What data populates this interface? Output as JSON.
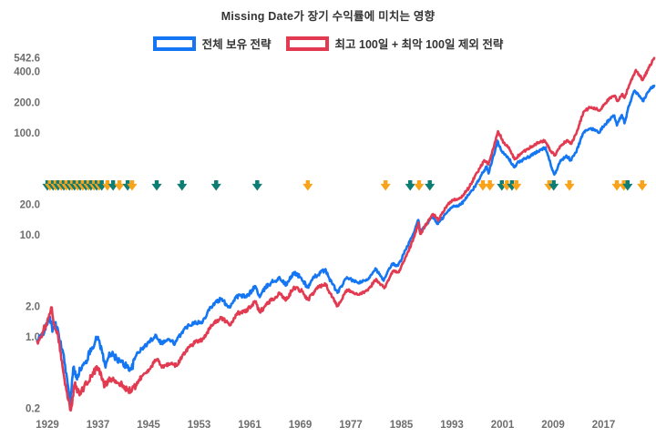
{
  "title": "Missing Date가 장기 수익률에 미치는 영향",
  "legend": {
    "items": [
      {
        "label": "전체 보유 전략",
        "color": "#1476f2"
      },
      {
        "label": "최고 100일 + 최악 100일 제외 전략",
        "color": "#e23a50"
      }
    ]
  },
  "chart_data": {
    "type": "line",
    "title": "Missing Date가 장기 수익률에 미치는 영향",
    "y_scale": "log",
    "grid": false,
    "background": "#ffffff",
    "tick_color": "#6e6e6e",
    "x_range": [
      1927.3,
      2025.3
    ],
    "y_range": [
      0.17,
      620
    ],
    "x_ticks": [
      1929,
      1937,
      1945,
      1953,
      1961,
      1969,
      1977,
      1985,
      1993,
      2001,
      2009,
      2017
    ],
    "y_ticks": [
      {
        "label": "542.6",
        "value": 542.6
      },
      {
        "label": "400.0",
        "value": 400
      },
      {
        "label": "200.0",
        "value": 200
      },
      {
        "label": "100.0",
        "value": 100
      },
      {
        "label": "20.0",
        "value": 20
      },
      {
        "label": "10.0",
        "value": 10
      },
      {
        "label": "2.0",
        "value": 2
      },
      {
        "label": "1.0",
        "value": 1
      },
      {
        "label": "0.2",
        "value": 0.2
      }
    ],
    "series": [
      {
        "name": "전체 보유 전략",
        "color": "#1476f2",
        "final_value": 290,
        "points": [
          [
            1927.4,
            0.9
          ],
          [
            1928.0,
            1.02
          ],
          [
            1928.6,
            1.18
          ],
          [
            1929.0,
            1.32
          ],
          [
            1929.4,
            1.58
          ],
          [
            1929.8,
            1.12
          ],
          [
            1930.2,
            1.38
          ],
          [
            1930.8,
            1.05
          ],
          [
            1931.5,
            0.7
          ],
          [
            1932.0,
            0.44
          ],
          [
            1932.6,
            0.22
          ],
          [
            1933.1,
            0.5
          ],
          [
            1933.6,
            0.4
          ],
          [
            1934.2,
            0.48
          ],
          [
            1935.0,
            0.55
          ],
          [
            1936.0,
            0.78
          ],
          [
            1937.0,
            1.0
          ],
          [
            1937.6,
            0.74
          ],
          [
            1938.2,
            0.5
          ],
          [
            1938.8,
            0.7
          ],
          [
            1939.6,
            0.64
          ],
          [
            1940.4,
            0.58
          ],
          [
            1941.5,
            0.52
          ],
          [
            1942.3,
            0.48
          ],
          [
            1943.2,
            0.7
          ],
          [
            1944.0,
            0.76
          ],
          [
            1945.0,
            0.88
          ],
          [
            1946.2,
            1.04
          ],
          [
            1947.0,
            0.87
          ],
          [
            1948.2,
            0.94
          ],
          [
            1949.2,
            0.86
          ],
          [
            1950.3,
            1.12
          ],
          [
            1951.2,
            1.28
          ],
          [
            1952.3,
            1.4
          ],
          [
            1953.5,
            1.37
          ],
          [
            1954.5,
            1.85
          ],
          [
            1955.5,
            2.15
          ],
          [
            1956.5,
            2.35
          ],
          [
            1957.8,
            1.95
          ],
          [
            1958.8,
            2.45
          ],
          [
            1959.5,
            2.55
          ],
          [
            1960.5,
            2.45
          ],
          [
            1961.9,
            3.15
          ],
          [
            1962.6,
            2.45
          ],
          [
            1963.5,
            3.05
          ],
          [
            1964.5,
            3.45
          ],
          [
            1965.8,
            3.75
          ],
          [
            1966.8,
            3.2
          ],
          [
            1968.0,
            4.3
          ],
          [
            1969.0,
            3.85
          ],
          [
            1970.2,
            3.05
          ],
          [
            1971.3,
            3.9
          ],
          [
            1972.9,
            4.55
          ],
          [
            1974.0,
            3.4
          ],
          [
            1974.9,
            2.7
          ],
          [
            1976.4,
            3.85
          ],
          [
            1977.5,
            3.5
          ],
          [
            1978.3,
            3.4
          ],
          [
            1979.6,
            3.6
          ],
          [
            1980.9,
            4.7
          ],
          [
            1982.2,
            3.55
          ],
          [
            1983.5,
            5.2
          ],
          [
            1984.5,
            5.0
          ],
          [
            1986.0,
            7.8
          ],
          [
            1987.0,
            10.5
          ],
          [
            1987.7,
            14.0
          ],
          [
            1988.0,
            10.5
          ],
          [
            1989.0,
            12.8
          ],
          [
            1989.9,
            15.2
          ],
          [
            1990.8,
            12.8
          ],
          [
            1992.0,
            16.0
          ],
          [
            1993.1,
            19.0
          ],
          [
            1994.4,
            19.8
          ],
          [
            1995.6,
            24.5
          ],
          [
            1996.6,
            29.5
          ],
          [
            1997.7,
            39.0
          ],
          [
            1998.5,
            47.0
          ],
          [
            1998.8,
            40.0
          ],
          [
            1999.6,
            60.0
          ],
          [
            2000.2,
            84.0
          ],
          [
            2001.0,
            64.0
          ],
          [
            2001.9,
            57.0
          ],
          [
            2002.9,
            46.0
          ],
          [
            2003.6,
            52.0
          ],
          [
            2004.6,
            56.0
          ],
          [
            2005.6,
            60.0
          ],
          [
            2006.6,
            66.0
          ],
          [
            2007.8,
            72.0
          ],
          [
            2008.6,
            50.0
          ],
          [
            2009.2,
            39.0
          ],
          [
            2010.1,
            52.0
          ],
          [
            2011.1,
            60.0
          ],
          [
            2011.8,
            54.0
          ],
          [
            2012.6,
            64.0
          ],
          [
            2013.8,
            100
          ],
          [
            2014.8,
            110
          ],
          [
            2015.6,
            108
          ],
          [
            2016.2,
            100
          ],
          [
            2016.9,
            115
          ],
          [
            2017.9,
            135
          ],
          [
            2018.7,
            148
          ],
          [
            2019.1,
            118
          ],
          [
            2019.9,
            150
          ],
          [
            2020.3,
            124
          ],
          [
            2021.0,
            185
          ],
          [
            2021.9,
            260
          ],
          [
            2023.2,
            205
          ],
          [
            2024.3,
            268
          ],
          [
            2025.0,
            290
          ]
        ]
      },
      {
        "name": "최고 100일 + 최악 100일 제외 전략",
        "color": "#e23a50",
        "final_value": 542.6,
        "points": [
          [
            1927.4,
            0.9
          ],
          [
            1928.2,
            1.1
          ],
          [
            1929.0,
            1.45
          ],
          [
            1929.6,
            1.95
          ],
          [
            1930.1,
            1.32
          ],
          [
            1930.6,
            1.12
          ],
          [
            1931.3,
            0.58
          ],
          [
            1932.0,
            0.3
          ],
          [
            1932.7,
            0.19
          ],
          [
            1933.3,
            0.34
          ],
          [
            1934.0,
            0.28
          ],
          [
            1934.8,
            0.32
          ],
          [
            1936.0,
            0.42
          ],
          [
            1937.0,
            0.5
          ],
          [
            1938.1,
            0.33
          ],
          [
            1938.8,
            0.4
          ],
          [
            1940.0,
            0.36
          ],
          [
            1941.3,
            0.32
          ],
          [
            1942.3,
            0.29
          ],
          [
            1943.5,
            0.38
          ],
          [
            1944.5,
            0.44
          ],
          [
            1945.5,
            0.52
          ],
          [
            1946.3,
            0.6
          ],
          [
            1947.2,
            0.51
          ],
          [
            1948.5,
            0.55
          ],
          [
            1949.5,
            0.52
          ],
          [
            1950.5,
            0.68
          ],
          [
            1951.5,
            0.8
          ],
          [
            1952.5,
            0.9
          ],
          [
            1953.6,
            0.95
          ],
          [
            1955.0,
            1.3
          ],
          [
            1956.5,
            1.55
          ],
          [
            1957.8,
            1.3
          ],
          [
            1959.0,
            1.7
          ],
          [
            1960.2,
            1.75
          ],
          [
            1961.9,
            2.2
          ],
          [
            1962.6,
            1.75
          ],
          [
            1964.0,
            2.2
          ],
          [
            1965.8,
            2.65
          ],
          [
            1966.8,
            2.3
          ],
          [
            1968.0,
            3.1
          ],
          [
            1969.3,
            2.8
          ],
          [
            1970.3,
            2.3
          ],
          [
            1971.5,
            2.95
          ],
          [
            1972.9,
            3.35
          ],
          [
            1974.9,
            2.0
          ],
          [
            1976.4,
            2.9
          ],
          [
            1977.5,
            2.7
          ],
          [
            1978.4,
            2.6
          ],
          [
            1979.7,
            2.85
          ],
          [
            1981.0,
            3.7
          ],
          [
            1982.3,
            3.0
          ],
          [
            1983.6,
            4.4
          ],
          [
            1984.6,
            4.3
          ],
          [
            1986.1,
            6.9
          ],
          [
            1987.1,
            9.8
          ],
          [
            1987.7,
            13.2
          ],
          [
            1988.0,
            10.2
          ],
          [
            1989.1,
            13.2
          ],
          [
            1990.0,
            16.0
          ],
          [
            1990.9,
            14.0
          ],
          [
            1992.0,
            18.5
          ],
          [
            1993.1,
            22.0
          ],
          [
            1994.4,
            23.0
          ],
          [
            1995.7,
            29.0
          ],
          [
            1997.0,
            41.0
          ],
          [
            1998.1,
            54.0
          ],
          [
            1998.8,
            49.0
          ],
          [
            1999.7,
            76.0
          ],
          [
            2000.3,
            104
          ],
          [
            2001.2,
            80
          ],
          [
            2002.1,
            70
          ],
          [
            2002.9,
            55
          ],
          [
            2003.8,
            62
          ],
          [
            2005.0,
            70
          ],
          [
            2006.2,
            78
          ],
          [
            2007.7,
            84
          ],
          [
            2008.6,
            67
          ],
          [
            2009.3,
            60
          ],
          [
            2010.2,
            74
          ],
          [
            2011.2,
            85
          ],
          [
            2011.9,
            78
          ],
          [
            2012.8,
            105
          ],
          [
            2013.8,
            160
          ],
          [
            2014.8,
            178
          ],
          [
            2015.8,
            172
          ],
          [
            2016.4,
            165
          ],
          [
            2017.0,
            190
          ],
          [
            2017.9,
            215
          ],
          [
            2018.7,
            232
          ],
          [
            2019.2,
            205
          ],
          [
            2019.9,
            240
          ],
          [
            2020.3,
            220
          ],
          [
            2021.0,
            290
          ],
          [
            2022.1,
            415
          ],
          [
            2023.2,
            330
          ],
          [
            2024.2,
            440
          ],
          [
            2025.0,
            542.6
          ]
        ]
      }
    ],
    "event_markers": {
      "shape": "down-arrow",
      "y_value": 30,
      "colors": {
        "teal": "#0e7d74",
        "orange": "#f9a31b"
      },
      "arrows": [
        {
          "year": 1929.0,
          "color": "teal"
        },
        {
          "year": 1929.4,
          "color": "orange"
        },
        {
          "year": 1929.9,
          "color": "teal"
        },
        {
          "year": 1930.3,
          "color": "orange"
        },
        {
          "year": 1930.7,
          "color": "teal"
        },
        {
          "year": 1931.2,
          "color": "orange"
        },
        {
          "year": 1931.6,
          "color": "teal"
        },
        {
          "year": 1932.0,
          "color": "orange"
        },
        {
          "year": 1932.5,
          "color": "teal"
        },
        {
          "year": 1932.9,
          "color": "orange"
        },
        {
          "year": 1933.3,
          "color": "teal"
        },
        {
          "year": 1933.8,
          "color": "orange"
        },
        {
          "year": 1934.2,
          "color": "teal"
        },
        {
          "year": 1934.6,
          "color": "orange"
        },
        {
          "year": 1935.1,
          "color": "teal"
        },
        {
          "year": 1935.5,
          "color": "orange"
        },
        {
          "year": 1935.9,
          "color": "teal"
        },
        {
          "year": 1936.4,
          "color": "orange"
        },
        {
          "year": 1936.8,
          "color": "teal"
        },
        {
          "year": 1937.2,
          "color": "orange"
        },
        {
          "year": 1937.6,
          "color": "teal"
        },
        {
          "year": 1938.5,
          "color": "orange"
        },
        {
          "year": 1939.4,
          "color": "teal"
        },
        {
          "year": 1940.4,
          "color": "orange"
        },
        {
          "year": 1941.7,
          "color": "teal"
        },
        {
          "year": 1942.4,
          "color": "orange"
        },
        {
          "year": 1946.3,
          "color": "teal"
        },
        {
          "year": 1950.3,
          "color": "teal"
        },
        {
          "year": 1955.7,
          "color": "teal"
        },
        {
          "year": 1962.2,
          "color": "teal"
        },
        {
          "year": 1970.2,
          "color": "orange"
        },
        {
          "year": 1982.5,
          "color": "orange"
        },
        {
          "year": 1986.4,
          "color": "teal"
        },
        {
          "year": 1987.8,
          "color": "orange"
        },
        {
          "year": 1989.5,
          "color": "teal"
        },
        {
          "year": 1997.9,
          "color": "orange"
        },
        {
          "year": 1999.0,
          "color": "orange"
        },
        {
          "year": 2000.9,
          "color": "teal"
        },
        {
          "year": 2001.7,
          "color": "orange"
        },
        {
          "year": 2002.5,
          "color": "teal"
        },
        {
          "year": 2003.2,
          "color": "orange"
        },
        {
          "year": 2008.4,
          "color": "orange"
        },
        {
          "year": 2009.1,
          "color": "teal"
        },
        {
          "year": 2011.6,
          "color": "orange"
        },
        {
          "year": 2019.1,
          "color": "orange"
        },
        {
          "year": 2020.2,
          "color": "orange"
        },
        {
          "year": 2020.8,
          "color": "teal"
        },
        {
          "year": 2023.1,
          "color": "orange"
        }
      ]
    }
  }
}
